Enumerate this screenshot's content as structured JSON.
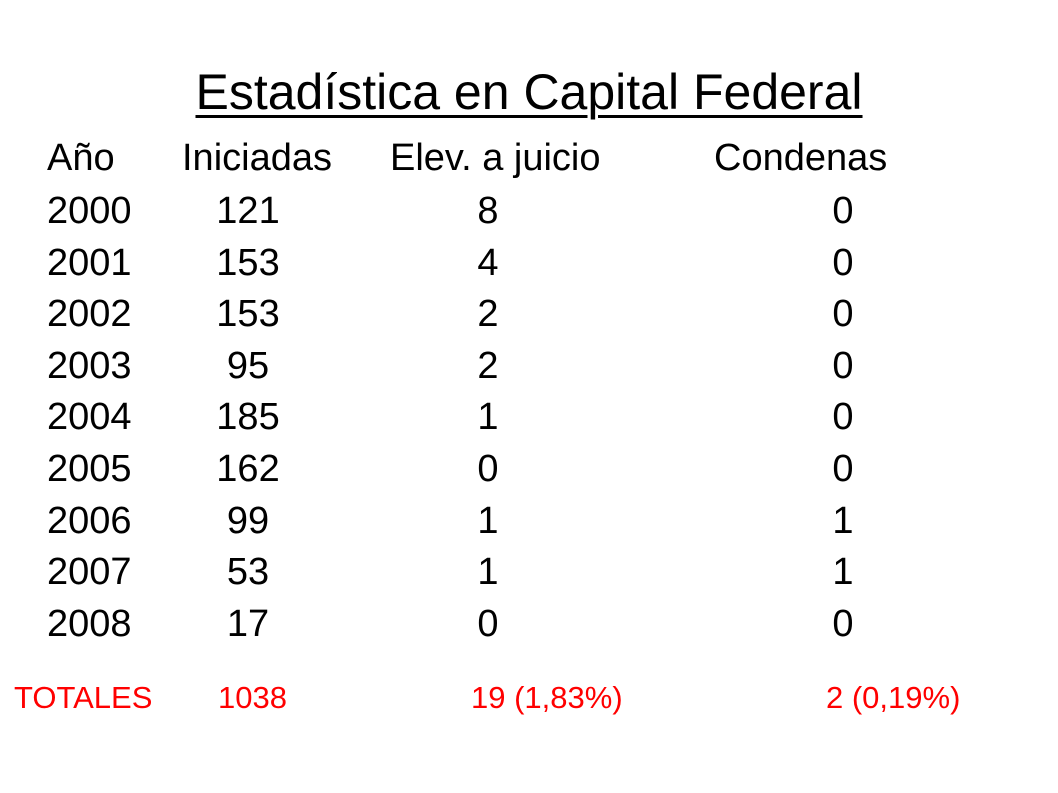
{
  "title": "Estadística en Capital Federal",
  "headers": {
    "year": "Año",
    "iniciadas": "Iniciadas",
    "elevadas": "Elev. a juicio",
    "condenas": "Condenas"
  },
  "rows": [
    {
      "year": "2000",
      "iniciadas": "121",
      "elevadas": "8",
      "condenas": "0"
    },
    {
      "year": "2001",
      "iniciadas": "153",
      "elevadas": "4",
      "condenas": "0"
    },
    {
      "year": "2002",
      "iniciadas": "153",
      "elevadas": "2",
      "condenas": "0"
    },
    {
      "year": "2003",
      "iniciadas": "95",
      "elevadas": "2",
      "condenas": "0"
    },
    {
      "year": "2004",
      "iniciadas": "185",
      "elevadas": "1",
      "condenas": "0"
    },
    {
      "year": "2005",
      "iniciadas": "162",
      "elevadas": "0",
      "condenas": "0"
    },
    {
      "year": "2006",
      "iniciadas": "99",
      "elevadas": "1",
      "condenas": "1"
    },
    {
      "year": "2007",
      "iniciadas": "53",
      "elevadas": "1",
      "condenas": "1"
    },
    {
      "year": "2008",
      "iniciadas": "17",
      "elevadas": "0",
      "condenas": "0"
    }
  ],
  "totals": {
    "label": "TOTALES",
    "iniciadas": "1038",
    "elevadas": "19  (1,83%)",
    "condenas": "2 (0,19%)"
  },
  "colors": {
    "text": "#000000",
    "totals": "#ff0000",
    "background": "#ffffff"
  }
}
